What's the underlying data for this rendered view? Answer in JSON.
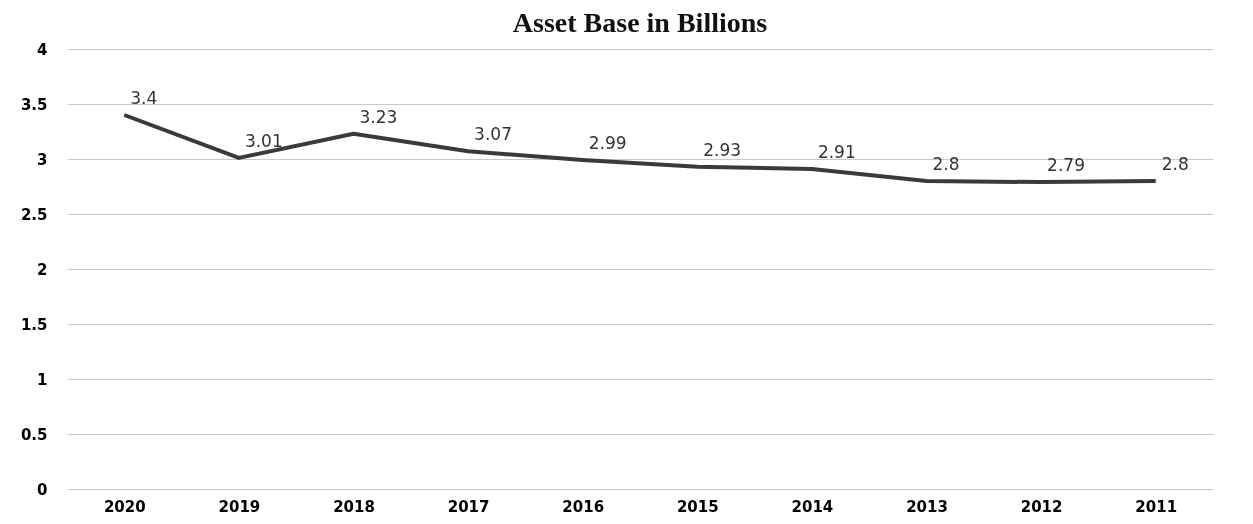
{
  "chart_data": {
    "type": "line",
    "title": "Asset Base in Billions",
    "categories": [
      "2020",
      "2019",
      "2018",
      "2017",
      "2016",
      "2015",
      "2014",
      "2013",
      "2012",
      "2011"
    ],
    "series": [
      {
        "color": "#3a3a3a",
        "values": [
          3.4,
          3.01,
          3.23,
          3.07,
          2.99,
          2.93,
          2.91,
          2.8,
          2.79,
          2.8
        ]
      }
    ],
    "ylim": [
      0,
      4
    ],
    "yticks": [
      0,
      0.5,
      1,
      1.5,
      2,
      2.5,
      3,
      3.5,
      4
    ],
    "grid": "y",
    "marker": "none",
    "line_style": "solid",
    "data_labels": true
  }
}
